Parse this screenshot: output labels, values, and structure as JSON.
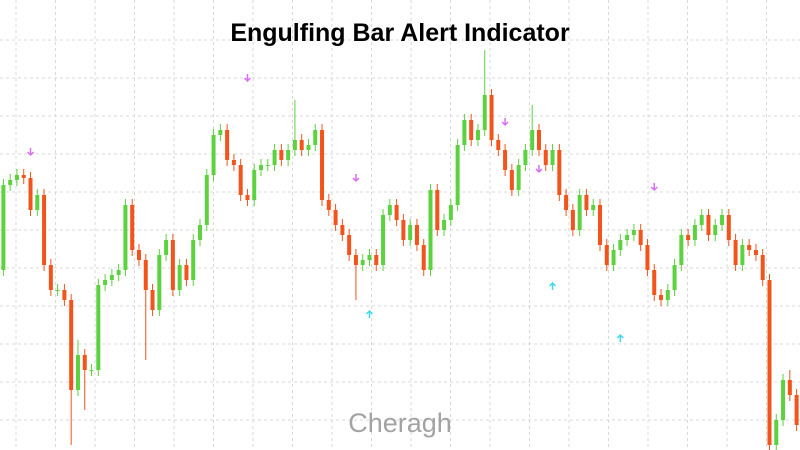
{
  "chart_data": {
    "type": "candlestick",
    "title": "Engulfing Bar Alert Indicator",
    "watermark": "Cheragh",
    "ylim": [
      0,
      450
    ],
    "grid": true,
    "up_color": "#5cd23e",
    "down_color": "#f2541b",
    "open": [
      180,
      265,
      270,
      275,
      272,
      240,
      255,
      185,
      160,
      160,
      150,
      60,
      95,
      80,
      80,
      165,
      170,
      175,
      180,
      245,
      200,
      190,
      160,
      140,
      195,
      210,
      160,
      185,
      170,
      210,
      225,
      275,
      315,
      320,
      290,
      285,
      255,
      250,
      280,
      285,
      285,
      300,
      290,
      300,
      310,
      300,
      305,
      320,
      250,
      240,
      225,
      215,
      195,
      185,
      190,
      195,
      185,
      235,
      245,
      230,
      210,
      225,
      205,
      180,
      260,
      220,
      230,
      245,
      305,
      330,
      310,
      320,
      355,
      310,
      300,
      280,
      260,
      285,
      300,
      320,
      300,
      285,
      300,
      255,
      240,
      220,
      255,
      240,
      245,
      205,
      185,
      200,
      210,
      215,
      220,
      205,
      180,
      155,
      150,
      160,
      185,
      215,
      210,
      225,
      235,
      215,
      225,
      235,
      210,
      185,
      205,
      200,
      195,
      170,
      5,
      30,
      70,
      55
    ],
    "high": [
      271,
      276,
      281,
      281,
      278,
      261,
      261,
      191,
      166,
      166,
      156,
      110,
      101,
      86,
      171,
      176,
      181,
      186,
      251,
      251,
      206,
      196,
      166,
      201,
      216,
      216,
      191,
      191,
      216,
      231,
      281,
      321,
      326,
      326,
      296,
      291,
      261,
      286,
      291,
      291,
      306,
      306,
      306,
      350,
      316,
      311,
      326,
      326,
      256,
      246,
      231,
      221,
      201,
      196,
      201,
      201,
      241,
      251,
      251,
      236,
      231,
      231,
      211,
      266,
      266,
      236,
      251,
      311,
      336,
      336,
      326,
      400,
      361,
      316,
      306,
      286,
      291,
      306,
      345,
      326,
      306,
      306,
      306,
      261,
      246,
      261,
      261,
      251,
      251,
      211,
      206,
      216,
      221,
      226,
      226,
      211,
      186,
      161,
      166,
      191,
      221,
      221,
      231,
      241,
      241,
      231,
      241,
      241,
      216,
      211,
      211,
      206,
      201,
      176,
      36,
      76,
      80,
      61
    ],
    "low": [
      174,
      259,
      264,
      266,
      234,
      234,
      179,
      154,
      154,
      144,
      5,
      54,
      40,
      74,
      74,
      159,
      164,
      169,
      174,
      194,
      184,
      90,
      134,
      134,
      189,
      154,
      154,
      164,
      164,
      204,
      219,
      269,
      309,
      284,
      279,
      249,
      244,
      244,
      274,
      279,
      279,
      284,
      284,
      294,
      294,
      294,
      299,
      244,
      234,
      219,
      209,
      189,
      150,
      179,
      184,
      179,
      179,
      229,
      224,
      204,
      204,
      199,
      174,
      174,
      214,
      214,
      224,
      239,
      299,
      304,
      304,
      314,
      304,
      294,
      274,
      254,
      254,
      279,
      294,
      294,
      279,
      279,
      249,
      234,
      214,
      214,
      234,
      234,
      199,
      179,
      179,
      194,
      204,
      209,
      199,
      174,
      149,
      144,
      144,
      154,
      179,
      204,
      204,
      219,
      209,
      209,
      219,
      204,
      179,
      179,
      194,
      189,
      164,
      0,
      0,
      24,
      49,
      19
    ],
    "close": [
      265,
      270,
      275,
      272,
      240,
      255,
      185,
      160,
      160,
      150,
      60,
      95,
      80,
      80,
      165,
      170,
      175,
      180,
      245,
      200,
      190,
      160,
      140,
      195,
      210,
      160,
      185,
      170,
      210,
      225,
      275,
      315,
      320,
      290,
      285,
      255,
      250,
      280,
      285,
      285,
      300,
      290,
      300,
      310,
      300,
      305,
      320,
      250,
      240,
      225,
      215,
      195,
      185,
      190,
      195,
      185,
      235,
      245,
      230,
      210,
      225,
      205,
      180,
      260,
      220,
      230,
      245,
      305,
      330,
      310,
      320,
      355,
      310,
      300,
      280,
      260,
      285,
      300,
      320,
      300,
      285,
      300,
      255,
      240,
      220,
      255,
      240,
      245,
      205,
      185,
      200,
      210,
      215,
      220,
      205,
      180,
      155,
      150,
      160,
      185,
      215,
      210,
      225,
      235,
      215,
      225,
      235,
      210,
      185,
      205,
      200,
      195,
      170,
      5,
      30,
      70,
      55,
      25
    ],
    "sell_alerts": {
      "color": "#d96ef0",
      "index": [
        4,
        36,
        52,
        74,
        79,
        96
      ],
      "values": [
        298,
        372,
        272,
        328,
        281,
        263
      ]
    },
    "buy_alerts": {
      "color": "#3fd8ee",
      "index": [
        54,
        81,
        91
      ],
      "values": [
        136,
        164,
        112
      ]
    }
  }
}
